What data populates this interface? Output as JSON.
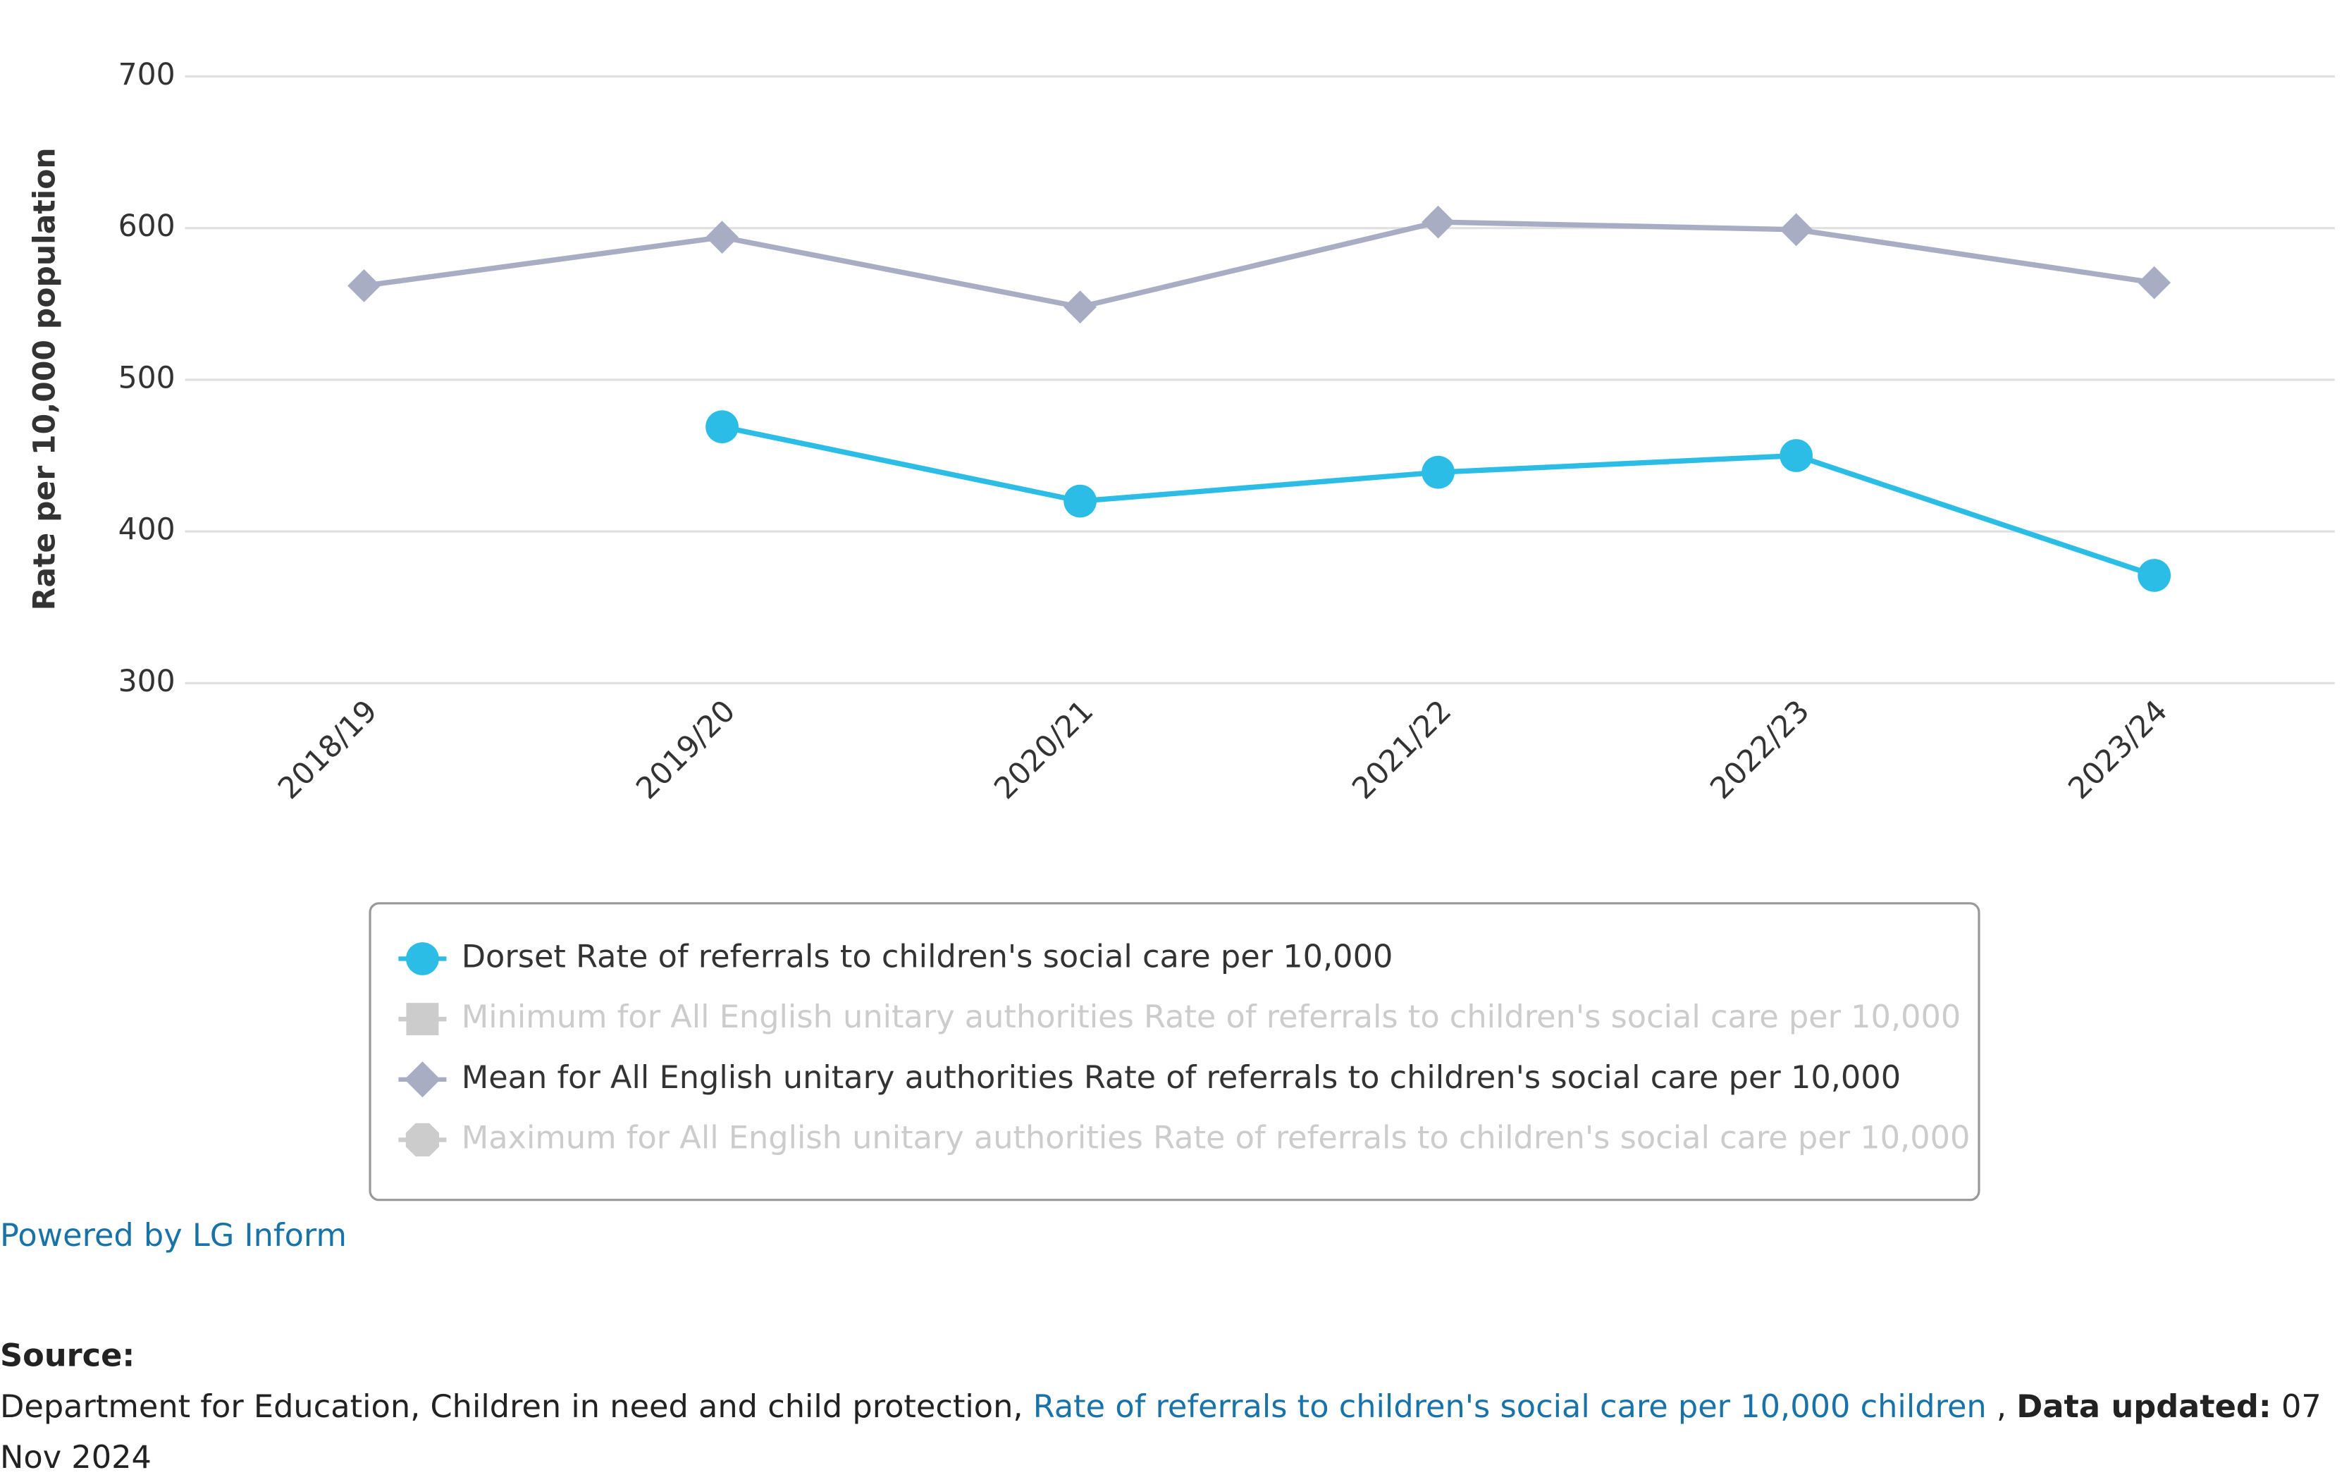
{
  "chart_data": {
    "type": "line",
    "y_label": "Rate per 10,000 population",
    "categories": [
      "2018/19",
      "2019/20",
      "2020/21",
      "2021/22",
      "2022/23",
      "2023/24"
    ],
    "series": [
      {
        "name": "Dorset Rate of referrals to children's social care per 10,000",
        "color": "#2bbde6",
        "marker": "circle",
        "visible": true,
        "values": [
          null,
          469,
          420,
          439,
          450,
          371
        ]
      },
      {
        "name": "Minimum for All English unitary authorities Rate of referrals to children's social care per 10,000",
        "color": "#cccccc",
        "marker": "square",
        "visible": false,
        "values": [
          null,
          null,
          null,
          null,
          null,
          null
        ]
      },
      {
        "name": "Mean for All English unitary authorities Rate of referrals to children's social care per 10,000",
        "color": "#a9adc4",
        "marker": "diamond",
        "visible": true,
        "values": [
          562,
          594,
          548,
          604,
          599,
          564
        ]
      },
      {
        "name": "Maximum for All English unitary authorities Rate of referrals to children's social care per 10,000",
        "color": "#cccccc",
        "marker": "octagon",
        "visible": false,
        "values": [
          null,
          null,
          null,
          null,
          null,
          null
        ]
      }
    ],
    "ylim": [
      300,
      700
    ],
    "yticks": [
      300,
      400,
      500,
      600,
      700
    ],
    "grid": true,
    "legend": "bottom"
  },
  "footer": {
    "powered_by": "Powered by LG Inform",
    "source_label": "Source:",
    "source_text": "Department for Education, Children in need and child protection,",
    "source_link": "Rate of referrals to children's social care per 10,000 children",
    "updated_label": "Data updated:",
    "updated_date": "07 Nov 2024"
  }
}
